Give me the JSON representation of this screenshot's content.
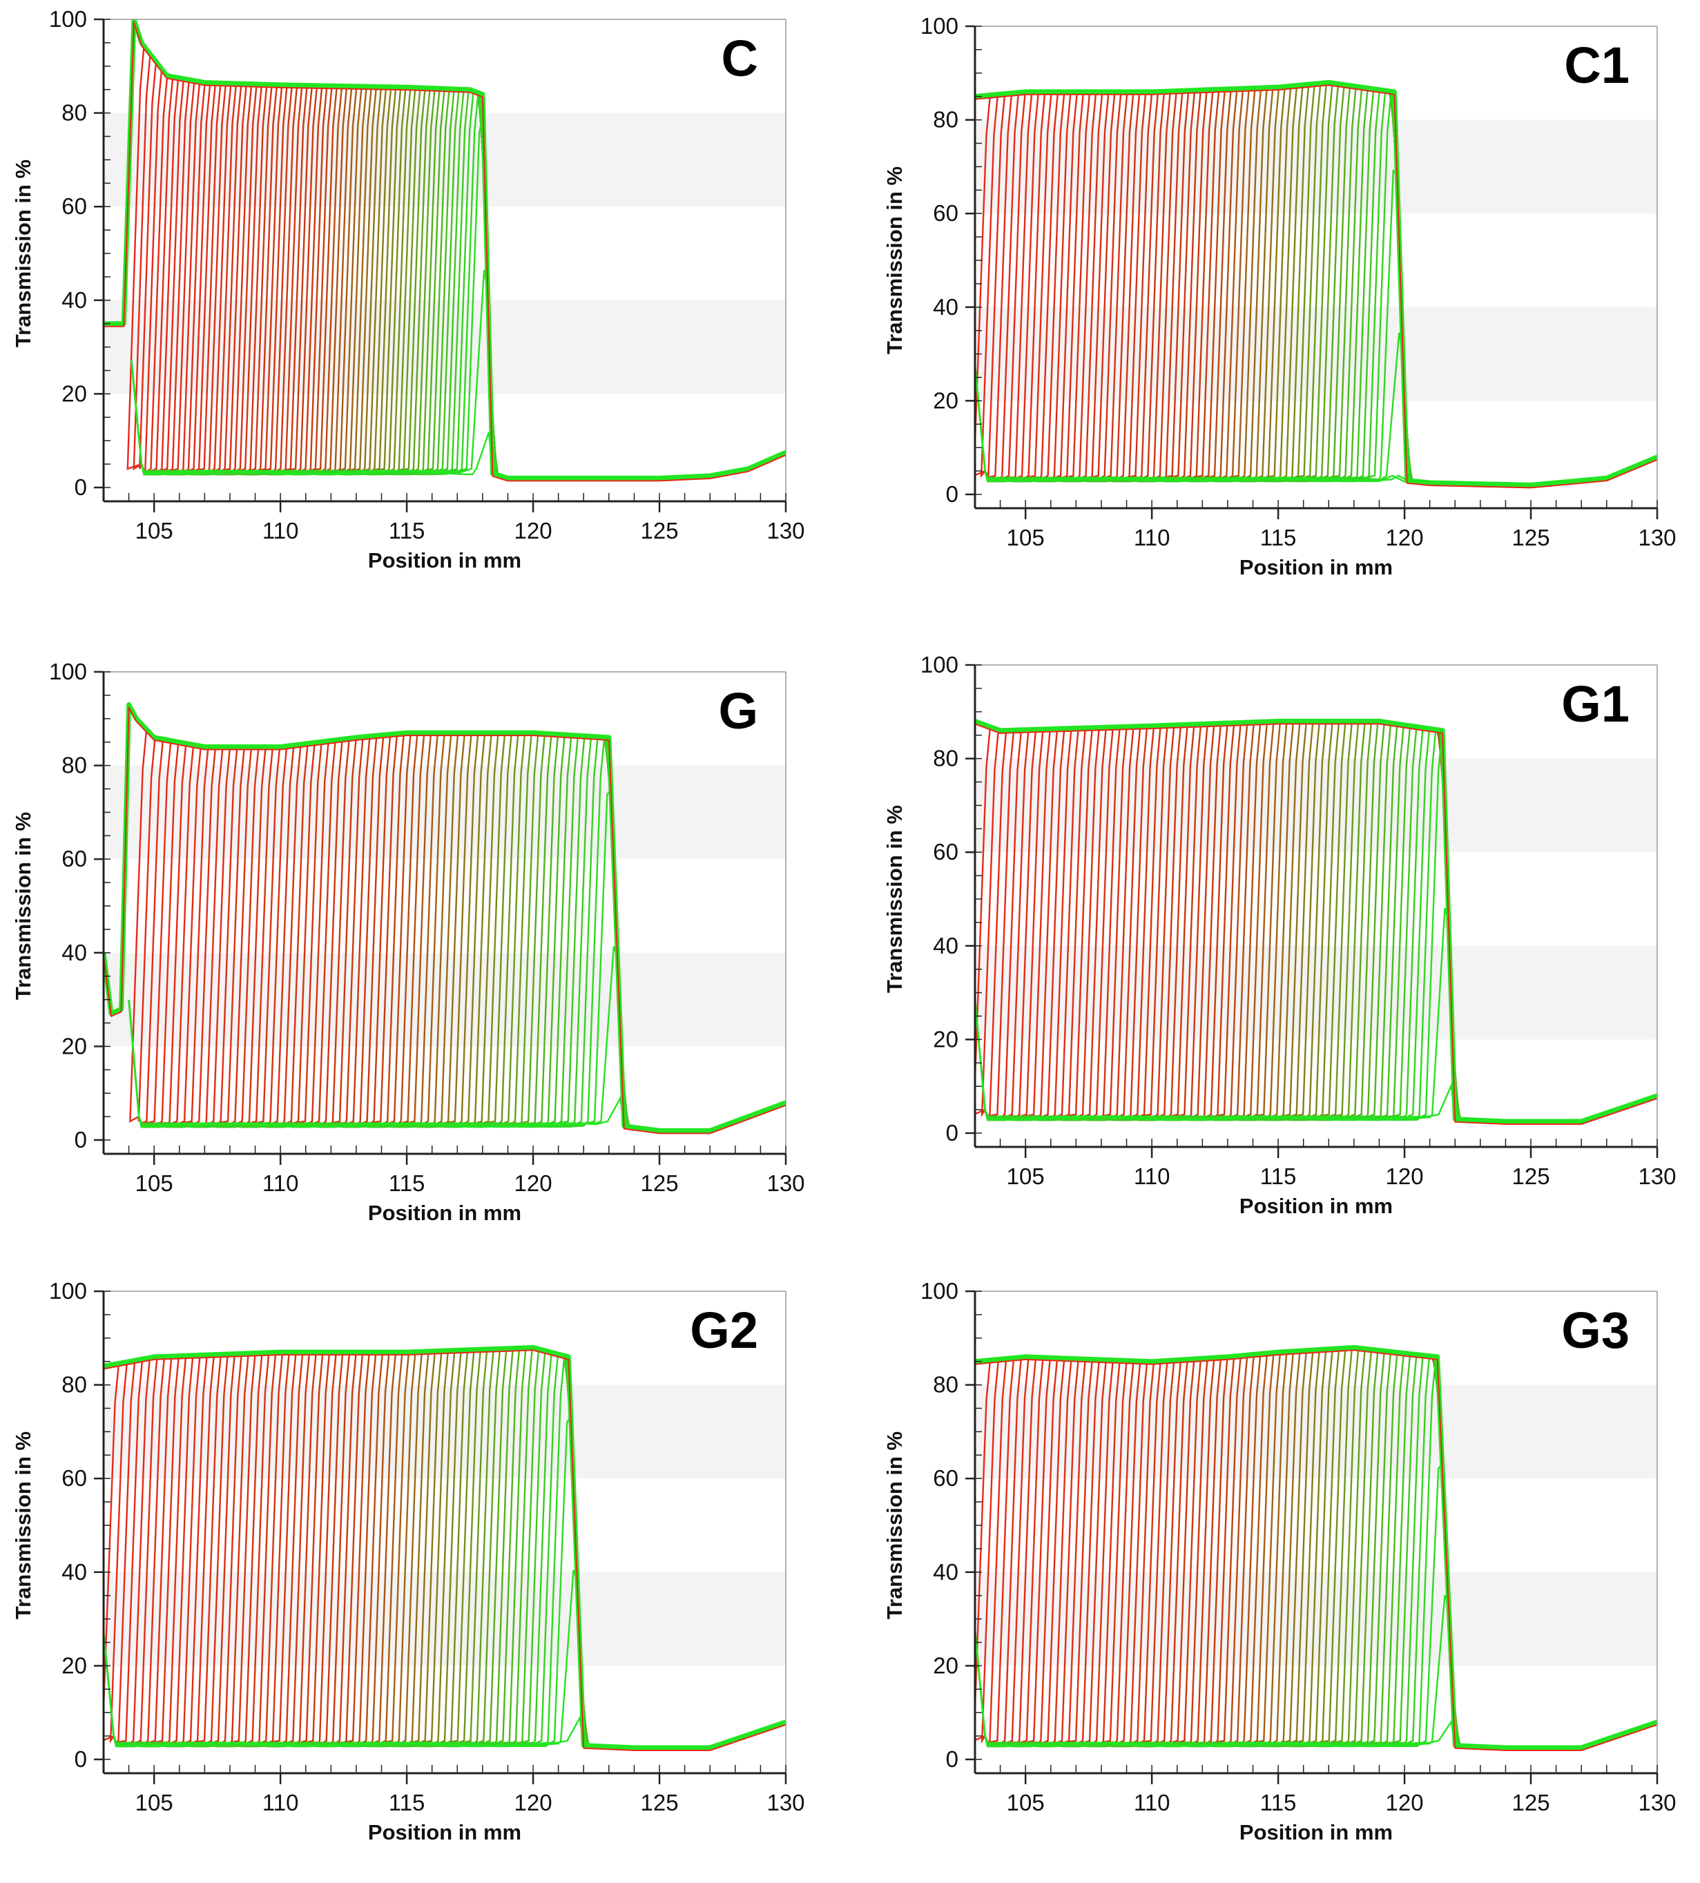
{
  "chart_data": [
    {
      "type": "line",
      "panel_label": "C",
      "xlabel": "Position in mm",
      "ylabel": "Transmission in %",
      "xlim": [
        103,
        130
      ],
      "ylim": [
        0,
        100
      ],
      "x_ticks": [
        105,
        110,
        115,
        120,
        125,
        130
      ],
      "y_ticks": [
        0,
        20,
        40,
        60,
        80,
        100
      ],
      "grid_bands": true,
      "colors": {
        "start": "#e8281a",
        "mid": "#c83a10",
        "end": "#22e622"
      },
      "meniscus_x": 104.1,
      "plateau_level": 86,
      "front_start_x": 104.2,
      "front_end_x": 118.0,
      "baseline_y": 2,
      "series": [
        {
          "x": [
            103,
            103.8,
            104.2,
            104.5,
            105.5,
            107,
            110,
            115,
            117.5,
            118.0,
            118.4,
            119,
            122,
            125,
            127,
            128.5,
            130
          ],
          "y": [
            35,
            35,
            100,
            95,
            88,
            86.5,
            86,
            85.5,
            85,
            84,
            3,
            2,
            2,
            2,
            2.5,
            4,
            7.5
          ]
        }
      ]
    },
    {
      "type": "line",
      "panel_label": "C1",
      "xlabel": "Position in mm",
      "ylabel": "Transmission in %",
      "xlim": [
        103,
        130
      ],
      "ylim": [
        0,
        100
      ],
      "x_ticks": [
        105,
        110,
        115,
        120,
        125,
        130
      ],
      "y_ticks": [
        0,
        20,
        40,
        60,
        80,
        100
      ],
      "grid_bands": true,
      "colors": {
        "start": "#e8281a",
        "mid": "#c83a10",
        "end": "#22e622"
      },
      "meniscus_x": 103.0,
      "plateau_level": 86,
      "front_start_x": 103.2,
      "front_end_x": 120.0,
      "baseline_y": 2,
      "series": [
        {
          "x": [
            103,
            105,
            110,
            115,
            117,
            119.6,
            120.1,
            121,
            125,
            128,
            130
          ],
          "y": [
            85,
            86,
            86,
            87,
            88,
            86,
            3,
            2.5,
            2,
            3.5,
            8
          ]
        }
      ]
    },
    {
      "type": "line",
      "panel_label": "G",
      "xlabel": "Position in mm",
      "ylabel": "Transmission in %",
      "xlim": [
        103,
        130
      ],
      "ylim": [
        0,
        100
      ],
      "x_ticks": [
        105,
        110,
        115,
        120,
        125,
        130
      ],
      "y_ticks": [
        0,
        20,
        40,
        60,
        80,
        100
      ],
      "grid_bands": true,
      "colors": {
        "start": "#e8281a",
        "mid": "#c83a10",
        "end": "#22e622"
      },
      "meniscus_x": 104.0,
      "plateau_level": 86,
      "front_start_x": 104.3,
      "front_end_x": 123.2,
      "baseline_y": 2,
      "series": [
        {
          "x": [
            103,
            103.3,
            103.7,
            104.0,
            104.3,
            105,
            107,
            110,
            113,
            115,
            120,
            123.0,
            123.6,
            125,
            127,
            130
          ],
          "y": [
            40,
            27,
            28,
            93,
            90,
            86,
            84,
            84,
            86,
            87,
            87,
            86,
            3,
            2,
            2,
            8
          ]
        }
      ]
    },
    {
      "type": "line",
      "panel_label": "G1",
      "xlabel": "Position in mm",
      "ylabel": "Transmission in %",
      "xlim": [
        103,
        130
      ],
      "ylim": [
        0,
        100
      ],
      "x_ticks": [
        105,
        110,
        115,
        120,
        125,
        130
      ],
      "y_ticks": [
        0,
        20,
        40,
        60,
        80,
        100
      ],
      "grid_bands": true,
      "colors": {
        "start": "#e8281a",
        "mid": "#c83a10",
        "end": "#22e622"
      },
      "meniscus_x": 103.0,
      "plateau_level": 86,
      "front_start_x": 103.2,
      "front_end_x": 121.6,
      "baseline_y": 2,
      "series": [
        {
          "x": [
            103,
            104,
            110,
            115,
            119,
            121.5,
            122.0,
            124,
            127,
            130
          ],
          "y": [
            88,
            86,
            87,
            88,
            88,
            86,
            3,
            2.5,
            2.5,
            8
          ]
        }
      ]
    },
    {
      "type": "line",
      "panel_label": "G2",
      "xlabel": "Position in mm",
      "ylabel": "Transmission in %",
      "xlim": [
        103,
        130
      ],
      "ylim": [
        0,
        100
      ],
      "x_ticks": [
        105,
        110,
        115,
        120,
        125,
        130
      ],
      "y_ticks": [
        0,
        20,
        40,
        60,
        80,
        100
      ],
      "grid_bands": true,
      "colors": {
        "start": "#e8281a",
        "mid": "#c83a10",
        "end": "#22e622"
      },
      "meniscus_x": 103.0,
      "plateau_level": 86,
      "front_start_x": 103.2,
      "front_end_x": 121.6,
      "baseline_y": 2,
      "series": [
        {
          "x": [
            103,
            105,
            110,
            115,
            120,
            121.4,
            122.0,
            124,
            127,
            130
          ],
          "y": [
            84,
            86,
            87,
            87,
            88,
            86,
            3,
            2.5,
            2.5,
            8
          ]
        }
      ]
    },
    {
      "type": "line",
      "panel_label": "G3",
      "xlabel": "Position in mm",
      "ylabel": "Transmission in %",
      "xlim": [
        103,
        130
      ],
      "ylim": [
        0,
        100
      ],
      "x_ticks": [
        105,
        110,
        115,
        120,
        125,
        130
      ],
      "y_ticks": [
        0,
        20,
        40,
        60,
        80,
        100
      ],
      "grid_bands": true,
      "colors": {
        "start": "#e8281a",
        "mid": "#c83a10",
        "end": "#22e622"
      },
      "meniscus_x": 103.0,
      "plateau_level": 86,
      "front_start_x": 103.2,
      "front_end_x": 121.6,
      "baseline_y": 2,
      "series": [
        {
          "x": [
            103,
            105,
            110,
            113,
            115,
            118,
            121.3,
            122.0,
            124,
            127,
            130
          ],
          "y": [
            85,
            86,
            85,
            86,
            87,
            88,
            86,
            3,
            2.5,
            2.5,
            8
          ]
        }
      ]
    }
  ]
}
